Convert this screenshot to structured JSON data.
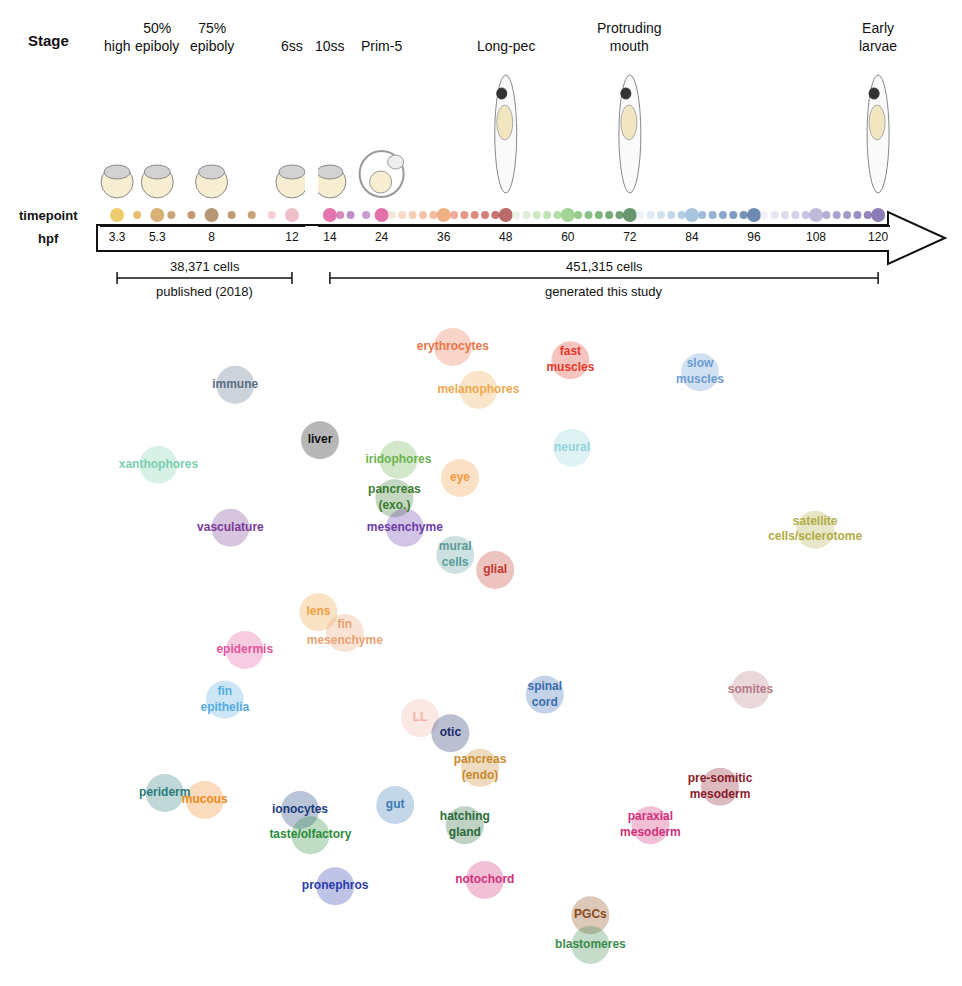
{
  "chart_data": [
    {
      "type": "timeline",
      "stage_title": "Stage",
      "ylabel": "timepoint",
      "xlabel": "hpf",
      "stages": [
        {
          "label": "high",
          "x": 3.3
        },
        {
          "label": "50% epiboly",
          "x": 5.3
        },
        {
          "label": "75% epiboly",
          "x": 8
        },
        {
          "label": "6ss",
          "x": 12
        },
        {
          "label": "10ss",
          "x": 14
        },
        {
          "label": "Prim-5",
          "x": 24
        },
        {
          "label": "Long-pec",
          "x": 48
        },
        {
          "label": "Protruding mouth",
          "x": 72
        },
        {
          "label": "Early larvae",
          "x": 120
        }
      ],
      "segments": [
        {
          "xlim": [
            2.45,
            12.65
          ],
          "xticks": [
            3.3,
            5.3,
            8,
            12
          ]
        },
        {
          "xlim": [
            11.7,
            122.3
          ],
          "xticks": [
            14,
            24,
            36,
            48,
            60,
            72,
            84,
            96,
            108,
            120
          ]
        }
      ],
      "x": [
        3.3,
        4.3,
        5.3,
        6,
        7,
        8,
        9,
        10,
        11,
        12,
        14,
        16,
        18,
        21,
        24,
        26,
        28,
        30,
        32,
        34,
        36,
        38,
        40,
        42,
        44,
        46,
        48,
        50,
        52,
        54,
        56,
        58,
        60,
        62,
        64,
        66,
        68,
        70,
        72,
        74,
        76,
        78,
        80,
        82,
        84,
        86,
        88,
        90,
        92,
        94,
        96,
        98,
        100,
        102,
        104,
        106,
        108,
        110,
        112,
        114,
        116,
        118,
        120
      ],
      "colors": [
        "#e6b530",
        "#d9a32e",
        "#c4923a",
        "#b58040",
        "#a86f3a",
        "#9a6a3a",
        "#a5703e",
        "#b07a45",
        "#f2b8c0",
        "#eaa2ae",
        "#d93a8a",
        "#c05aa0",
        "#a060b0",
        "#b070c0",
        "#d63384",
        "#f8dcc8",
        "#f5cbb0",
        "#f3bc98",
        "#f0ad82",
        "#ee9e6e",
        "#e8904e",
        "#e8846a",
        "#dc6a55",
        "#d05848",
        "#c04840",
        "#b03838",
        "#9e2a2a",
        "#e0f0d8",
        "#cde8c2",
        "#b8e0ab",
        "#a4d795",
        "#90ce80",
        "#7cc36c",
        "#6ab860",
        "#58a852",
        "#469845",
        "#3a883c",
        "#307a36",
        "#286a30",
        "#e5eef5",
        "#d0e0ee",
        "#bcd3e7",
        "#a8c6df",
        "#94b9d8",
        "#84acd2",
        "#7aa0cc",
        "#6a90c0",
        "#5a80b4",
        "#4a70a8",
        "#3c629c",
        "#2f5590",
        "#ecebf4",
        "#dddbec",
        "#cecbe3",
        "#bfbbdb",
        "#b0abd2",
        "#a39dca",
        "#968cc2",
        "#8a7cba",
        "#7e6db1",
        "#725ea8",
        "#66509f",
        "#5a4596"
      ],
      "spans": [
        {
          "text": "38,371 cells",
          "note": "published (2018)",
          "from": 3.3,
          "to": 12
        },
        {
          "text": "451,315 cells",
          "note": "generated this study",
          "from": 14,
          "to": 120
        }
      ]
    },
    {
      "type": "scatter",
      "tick_labels": false,
      "xlim": [
        0,
        100
      ],
      "ylim": [
        0,
        100
      ],
      "labels": [
        "erythrocytes",
        "immune",
        "fast muscles",
        "slow muscles",
        "melanophores",
        "liver",
        "iridophores",
        "neural",
        "xanthophores",
        "eye",
        "pancreas (exo.)",
        "vasculature",
        "mesenchyme",
        "satellite cells/sclerotome",
        "mural cells",
        "glial",
        "lens",
        "fin mesenchyme",
        "epidermis",
        "somites",
        "spinal cord",
        "fin epithelia",
        "LL",
        "otic",
        "pancreas (endo)",
        "pre-somitic mesoderm",
        "periderm",
        "mucous",
        "gut",
        "ionocytes",
        "hatching gland",
        "paraxial mesoderm",
        "taste/olfactory",
        "notochord",
        "pronephros",
        "PGCs",
        "blastomeres"
      ],
      "x": [
        44.1,
        16.9,
        58.8,
        75,
        47.3,
        27.5,
        37.3,
        59,
        7.3,
        45,
        36.8,
        16.3,
        38.1,
        89.4,
        44.4,
        49.4,
        27.3,
        30.6,
        18.1,
        81.3,
        55.6,
        15.6,
        40,
        43.8,
        47.5,
        77.5,
        8.1,
        13.1,
        36.9,
        25,
        45.6,
        68.8,
        26.3,
        48.1,
        29.4,
        61.3,
        61.3
      ],
      "y": [
        97.3,
        91.3,
        95.2,
        93.3,
        90.5,
        82.5,
        79.4,
        81.3,
        78.6,
        76.5,
        73.3,
        68.6,
        68.6,
        68.3,
        64.3,
        61.9,
        55.2,
        51.9,
        49.2,
        42.9,
        42.1,
        41.3,
        38.4,
        36,
        30.5,
        27.5,
        26.5,
        25.4,
        24.6,
        23.8,
        21.4,
        21.4,
        19.8,
        12.7,
        11.7,
        7.1,
        2.4
      ],
      "colors": [
        "#e8734a",
        "#5b6e85",
        "#e03a2a",
        "#6b9bd2",
        "#f0a84e",
        "#111111",
        "#6cb34f",
        "#93d3dc",
        "#7ccfae",
        "#f09a3e",
        "#3d7d32",
        "#7b3a96",
        "#6a3ca8",
        "#b0ac45",
        "#5a9a98",
        "#c0392b",
        "#f0a040",
        "#e9a374",
        "#e0559a",
        "#b57a85",
        "#3a6cae",
        "#56acdf",
        "#f3b4a4",
        "#1b2a6b",
        "#c8892e",
        "#8b1a2b",
        "#2b7b7b",
        "#f08a20",
        "#3a7ab2",
        "#1b3b7b",
        "#2b6b3b",
        "#d0307a",
        "#2b8b3b",
        "#d0307a",
        "#2b3bab",
        "#8b4b1b",
        "#3b8b4b"
      ]
    }
  ]
}
